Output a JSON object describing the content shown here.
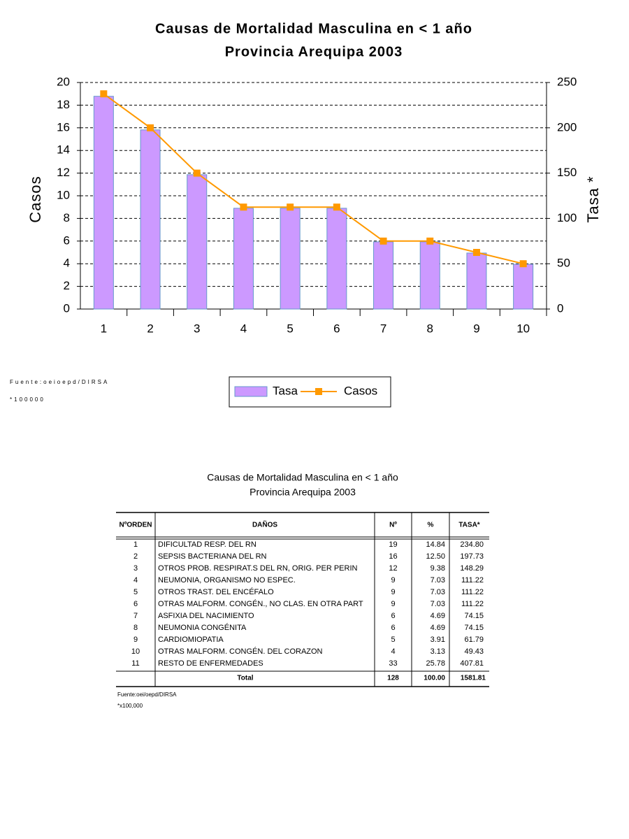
{
  "chart_data": {
    "type": "bar",
    "title": "Causas de Mortalidad Masculina en < 1 año",
    "subtitle": "Provincia Arequipa 2003",
    "ylabel": "Casos",
    "y2label": "Tasa *",
    "categories": [
      "1",
      "2",
      "3",
      "4",
      "5",
      "6",
      "7",
      "8",
      "9",
      "10"
    ],
    "series": [
      {
        "name": "Tasa",
        "type": "bar",
        "axis": "y2",
        "color": "#cc99ff",
        "values": [
          234.8,
          197.73,
          148.29,
          111.22,
          111.22,
          111.22,
          74.15,
          74.15,
          61.79,
          49.43
        ]
      },
      {
        "name": "Casos",
        "type": "line",
        "color": "#ff9900",
        "values": [
          19,
          16,
          12,
          9,
          9,
          9,
          6,
          6,
          5,
          4
        ]
      }
    ],
    "ylim": [
      0,
      20
    ],
    "yticks": [
      0,
      2,
      4,
      6,
      8,
      10,
      12,
      14,
      16,
      18,
      20
    ],
    "y2lim": [
      0,
      250
    ],
    "y2ticks": [
      0,
      50,
      100,
      150,
      200,
      250
    ],
    "grid": true,
    "legend": "bottom",
    "notes": [
      "Fuente:oeioepd/DIRSA",
      "*100000"
    ]
  },
  "table": {
    "title": "Causas de Mortalidad Masculina en < 1 año",
    "subtitle": "Provincia Arequipa 2003",
    "headers": [
      "NºORDEN",
      "DAÑOS",
      "Nº",
      "%",
      "TASA*"
    ],
    "rows": [
      [
        "1",
        "DIFICULTAD RESP. DEL RN",
        "19",
        "14.84",
        "234.80"
      ],
      [
        "2",
        "SEPSIS BACTERIANA DEL RN",
        "16",
        "12.50",
        "197.73"
      ],
      [
        "3",
        "OTROS PROB. RESPIRAT.S DEL RN, ORIG. PER PERIN",
        "12",
        "9.38",
        "148.29"
      ],
      [
        "4",
        "NEUMONIA, ORGANISMO NO ESPEC.",
        "9",
        "7.03",
        "111.22"
      ],
      [
        "5",
        "OTROS TRAST. DEL ENCÉFALO",
        "9",
        "7.03",
        "111.22"
      ],
      [
        "6",
        "OTRAS MALFORM. CONGÉN., NO CLAS. EN OTRA PART",
        "9",
        "7.03",
        "111.22"
      ],
      [
        "7",
        "ASFIXIA DEL NACIMIENTO",
        "6",
        "4.69",
        "74.15"
      ],
      [
        "8",
        "NEUMONIA CONGÉNITA",
        "6",
        "4.69",
        "74.15"
      ],
      [
        "9",
        "CARDIOMIOPATIA",
        "5",
        "3.91",
        "61.79"
      ],
      [
        "10",
        "OTRAS MALFORM. CONGÉN. DEL CORAZON",
        "4",
        "3.13",
        "49.43"
      ],
      [
        "11",
        "RESTO DE ENFERMEDADES",
        "33",
        "25.78",
        "407.81"
      ]
    ],
    "total": [
      "Total",
      "128",
      "100.00",
      "1581.81"
    ],
    "footnotes": [
      "Fuente:oei/oepd/DIRSA",
      "*x100,000"
    ]
  }
}
